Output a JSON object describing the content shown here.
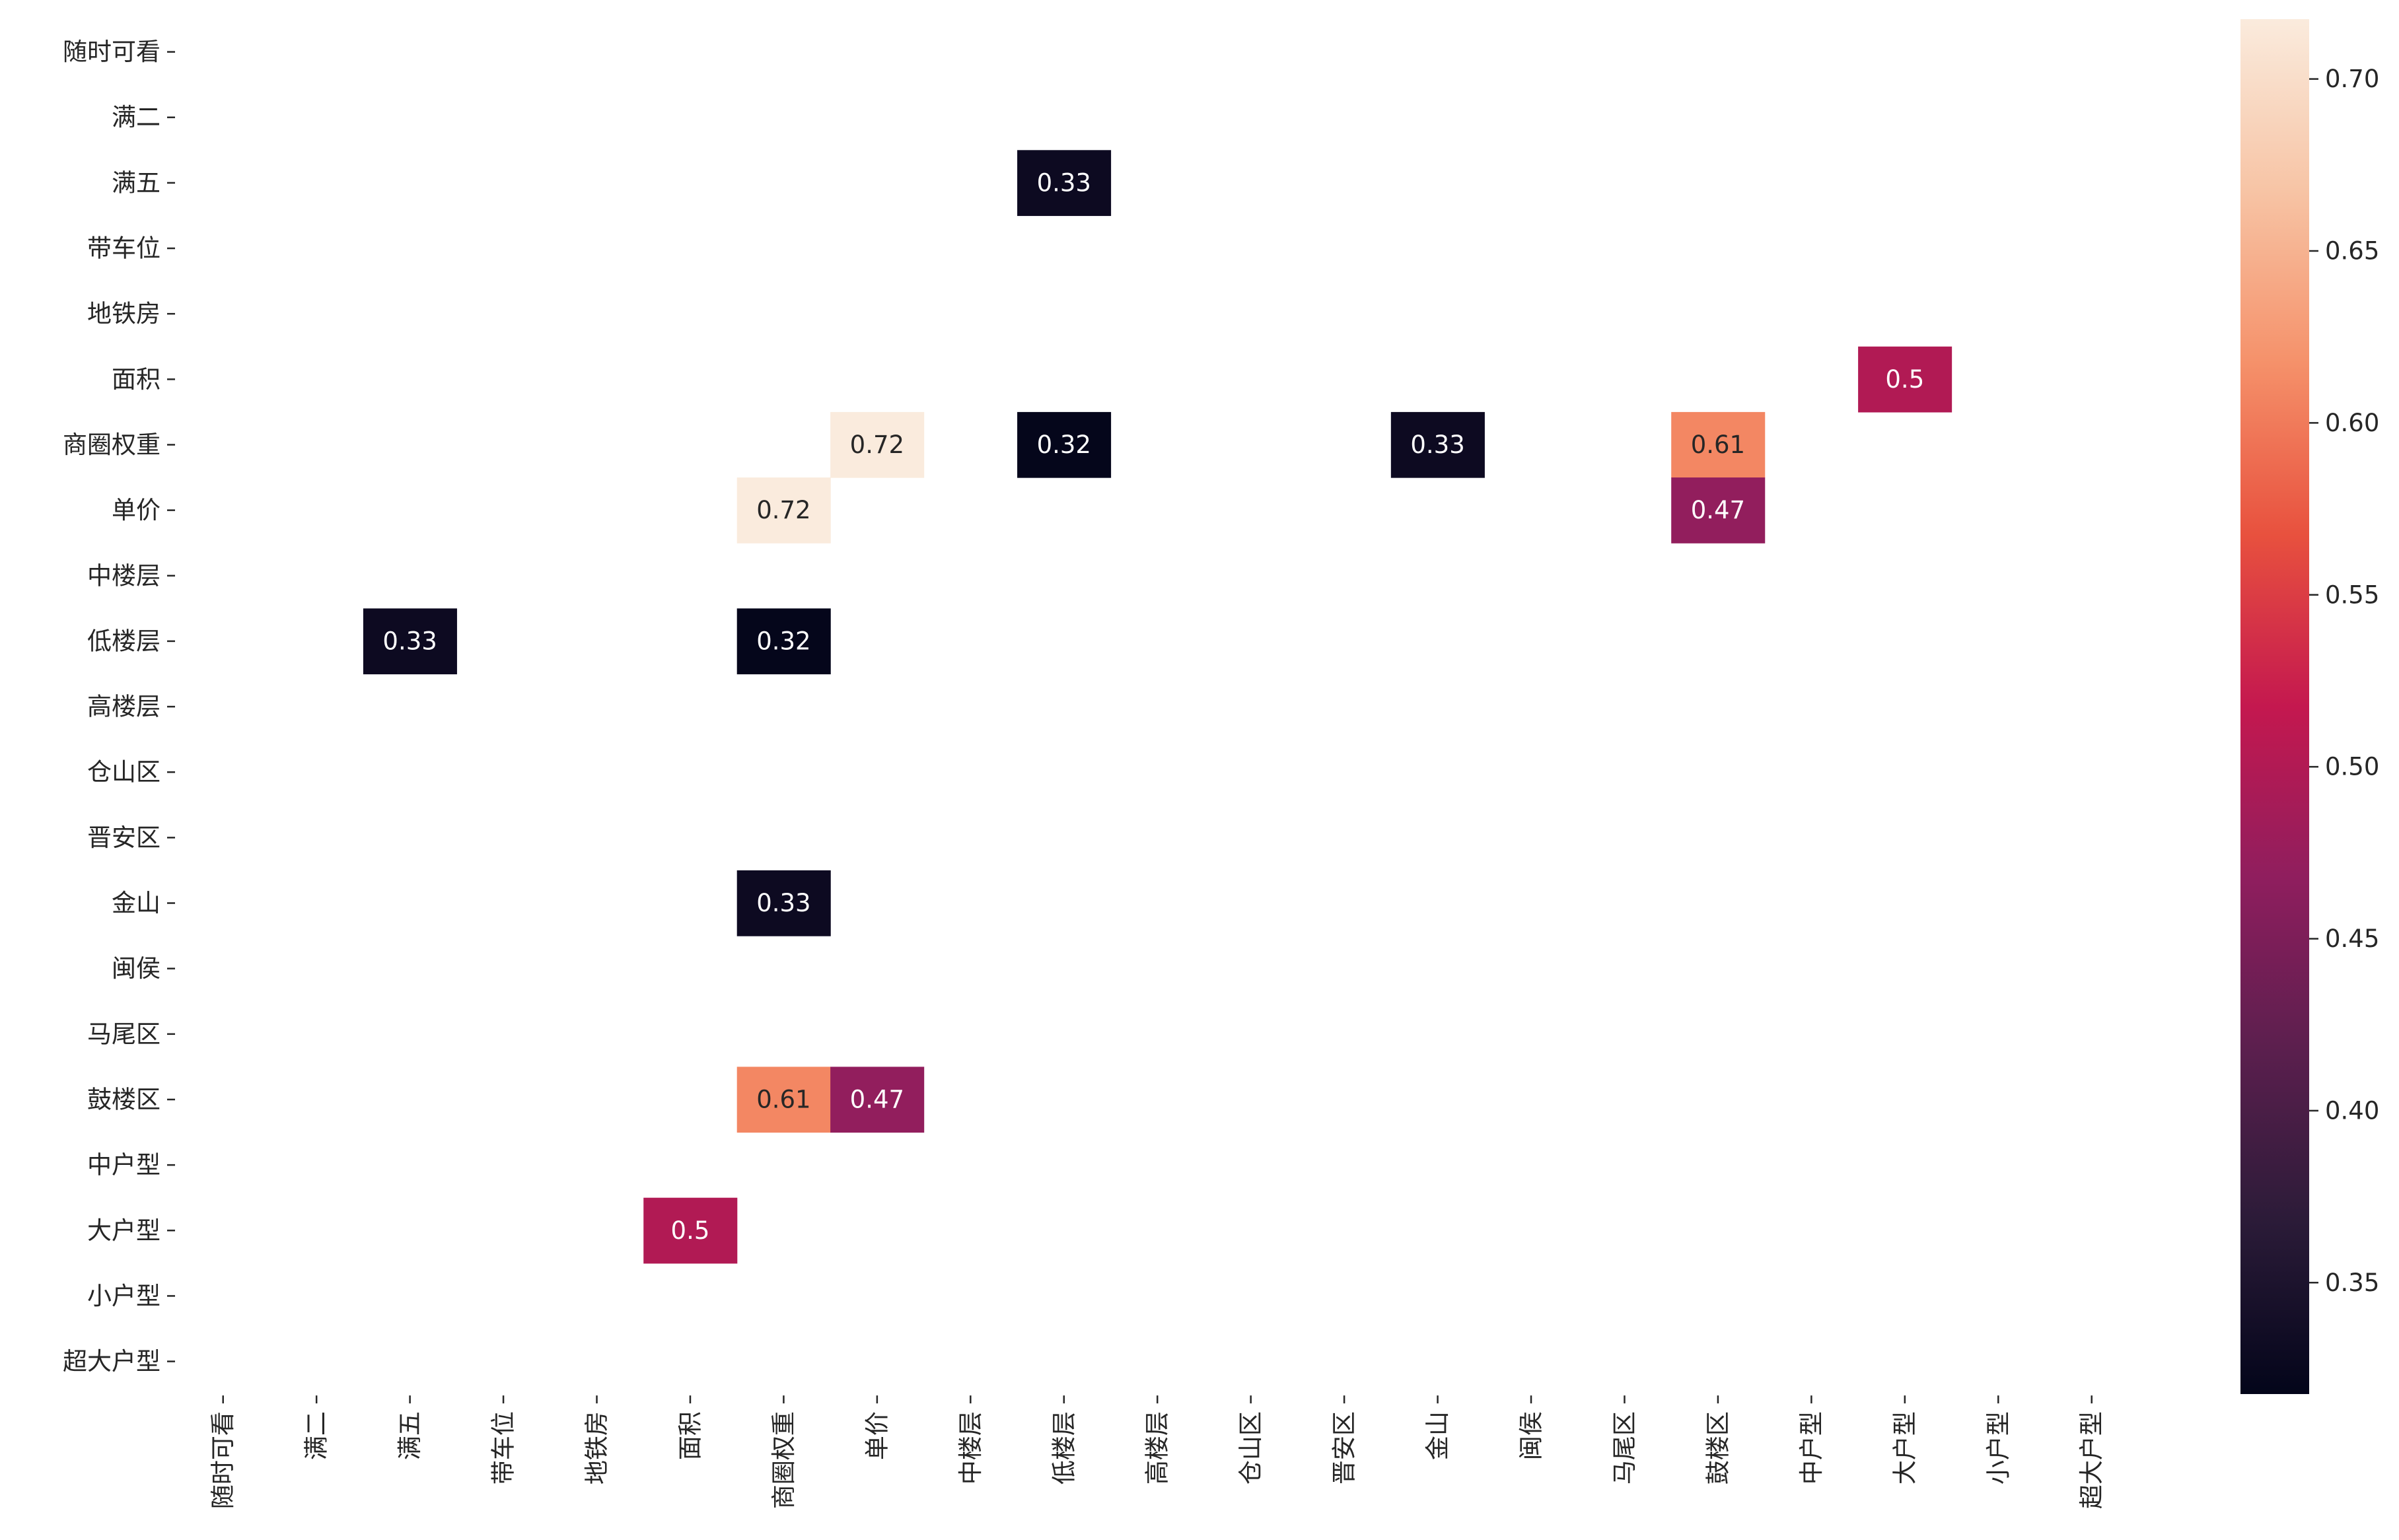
{
  "chart_data": {
    "type": "heatmap",
    "title": "",
    "xlabel": "",
    "ylabel": "",
    "labels": [
      "随时可看",
      "满二",
      "满五",
      "带车位",
      "地铁房",
      "面积",
      "商圈权重",
      "单价",
      "中楼层",
      "低楼层",
      "高楼层",
      "仓山区",
      "晋安区",
      "金山",
      "闽侯",
      "马尾区",
      "鼓楼区",
      "中户型",
      "大户型",
      "小户型",
      "超大户型"
    ],
    "cells": [
      {
        "row": "满五",
        "col": "低楼层",
        "value": 0.33,
        "label": "0.33"
      },
      {
        "row": "面积",
        "col": "大户型",
        "value": 0.5,
        "label": "0.5"
      },
      {
        "row": "商圈权重",
        "col": "单价",
        "value": 0.72,
        "label": "0.72"
      },
      {
        "row": "商圈权重",
        "col": "低楼层",
        "value": 0.32,
        "label": "0.32"
      },
      {
        "row": "商圈权重",
        "col": "金山",
        "value": 0.33,
        "label": "0.33"
      },
      {
        "row": "商圈权重",
        "col": "鼓楼区",
        "value": 0.61,
        "label": "0.61"
      },
      {
        "row": "单价",
        "col": "商圈权重",
        "value": 0.72,
        "label": "0.72"
      },
      {
        "row": "单价",
        "col": "鼓楼区",
        "value": 0.47,
        "label": "0.47"
      },
      {
        "row": "低楼层",
        "col": "满五",
        "value": 0.33,
        "label": "0.33"
      },
      {
        "row": "低楼层",
        "col": "商圈权重",
        "value": 0.32,
        "label": "0.32"
      },
      {
        "row": "金山",
        "col": "商圈权重",
        "value": 0.33,
        "label": "0.33"
      },
      {
        "row": "鼓楼区",
        "col": "商圈权重",
        "value": 0.61,
        "label": "0.61"
      },
      {
        "row": "鼓楼区",
        "col": "单价",
        "value": 0.47,
        "label": "0.47"
      },
      {
        "row": "大户型",
        "col": "面积",
        "value": 0.5,
        "label": "0.5"
      }
    ],
    "colorbar": {
      "min": 0.3176,
      "max": 0.7174,
      "ticks": [
        "0.35",
        "0.40",
        "0.45",
        "0.50",
        "0.55",
        "0.60",
        "0.65",
        "0.70"
      ],
      "colormap": "rocket",
      "stops": [
        "#03051a",
        "#2b1b38",
        "#5b1f4e",
        "#8f1e5e",
        "#c4184f",
        "#e8513e",
        "#f5916a",
        "#f7c4a5",
        "#faebdd"
      ]
    },
    "grid": false,
    "colorbar_position": "right"
  }
}
